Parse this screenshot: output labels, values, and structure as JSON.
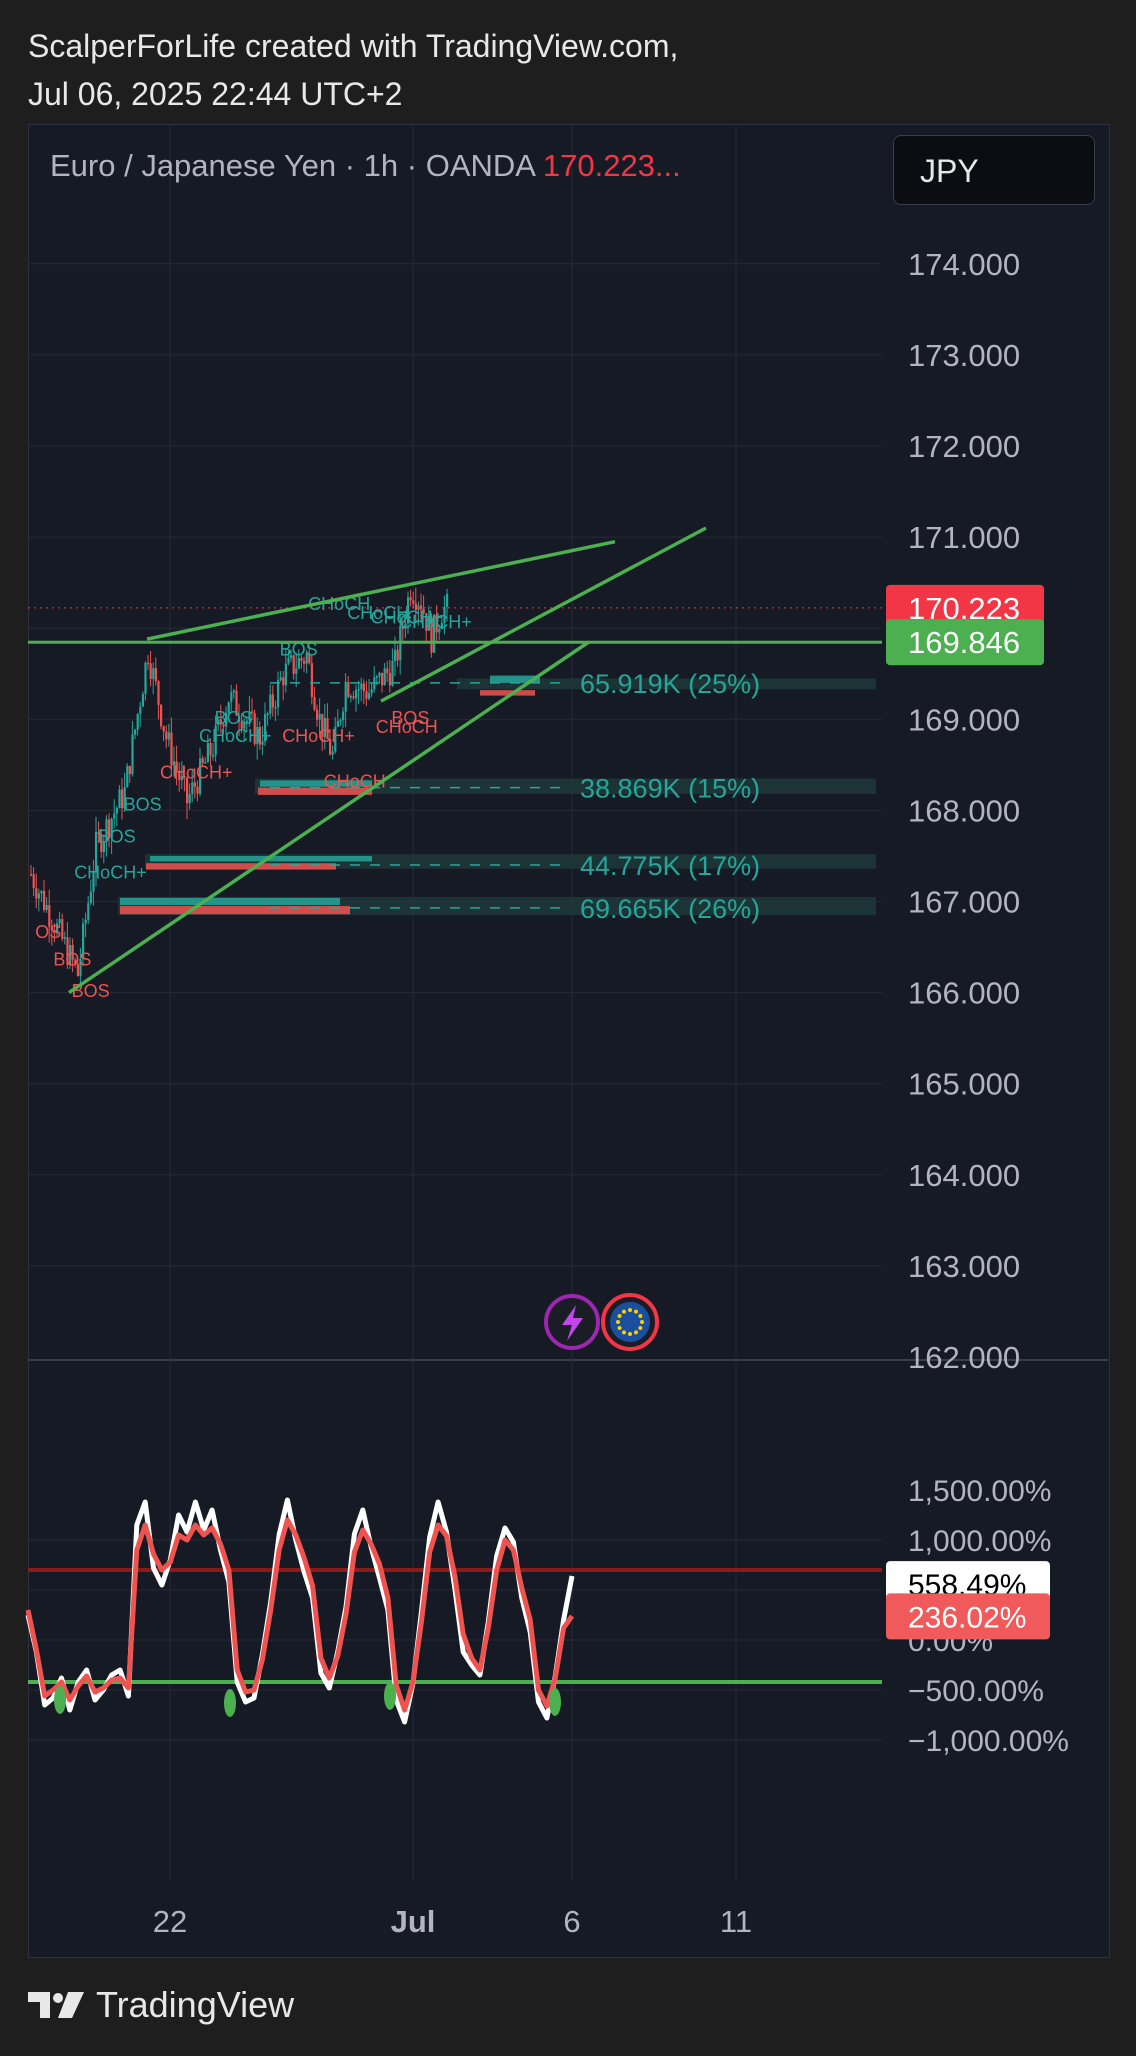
{
  "header": {
    "line1": "ScalperForLife created with TradingView.com,",
    "line2": "Jul 06, 2025 22:44 UTC+2"
  },
  "title": {
    "text": "Euro / Japanese Yen · 1h · OANDA",
    "price": "170.223..."
  },
  "currency_button": "JPY",
  "footer": {
    "brand": "TradingView"
  },
  "colors": {
    "background": "#161a25",
    "up": "#26a69a",
    "down": "#ef5350",
    "trendline": "#4caf50",
    "price_label": "#f23645",
    "level_label": "#4caf50",
    "osc_upper": "#8b1a1a"
  },
  "icons": [
    "lightning-icon",
    "eu-flag-icon"
  ],
  "chart_data": [
    {
      "type": "candlestick",
      "symbol": "EURJPY",
      "timeframe": "1h",
      "y_ticks": [
        "174.000",
        "173.000",
        "172.000",
        "171.000",
        "169.000",
        "168.000",
        "167.000",
        "166.000",
        "165.000",
        "164.000",
        "163.000",
        "162.000"
      ],
      "ylim": [
        162,
        174.9
      ],
      "x_ticks": [
        "22",
        "Jul",
        "6",
        "11"
      ],
      "price_tags": [
        {
          "label": "170.223",
          "value": 170.223,
          "color": "#f23645"
        },
        {
          "label": "169.846",
          "value": 169.846,
          "color": "#4caf50"
        }
      ],
      "volume_levels": [
        {
          "label": "65.919K (25%)",
          "price": 169.4
        },
        {
          "label": "38.869K (15%)",
          "price": 168.25
        },
        {
          "label": "44.775K (17%)",
          "price": 167.4
        },
        {
          "label": "69.665K (26%)",
          "price": 166.93
        }
      ],
      "structure_labels": [
        {
          "text": "CHoCH",
          "i": 107,
          "price": 170.2,
          "up": true
        },
        {
          "text": "CHoCH",
          "i": 122,
          "price": 170.1,
          "up": true
        },
        {
          "text": "CHoCH+",
          "i": 131,
          "price": 170.05,
          "up": true
        },
        {
          "text": "CHoCH+",
          "i": 142,
          "price": 170.0,
          "up": true
        },
        {
          "text": "BOS",
          "i": 96,
          "price": 169.7,
          "up": true
        },
        {
          "text": "BOS",
          "i": 71,
          "price": 168.95,
          "up": true
        },
        {
          "text": "CHoCH+",
          "i": 65,
          "price": 168.75,
          "up": true
        },
        {
          "text": "CHoCH+",
          "i": 97,
          "price": 168.75,
          "up": false
        },
        {
          "text": "CHoCH",
          "i": 133,
          "price": 168.85,
          "up": false
        },
        {
          "text": "BOS",
          "i": 139,
          "price": 168.95,
          "up": false
        },
        {
          "text": "CHoCH+",
          "i": 50,
          "price": 168.35,
          "up": false
        },
        {
          "text": "CHoCH",
          "i": 113,
          "price": 168.25,
          "up": false
        },
        {
          "text": "BOS",
          "i": 36,
          "price": 168.0,
          "up": true
        },
        {
          "text": "BOS",
          "i": 26,
          "price": 167.65,
          "up": true
        },
        {
          "text": "CHoCH+",
          "i": 17,
          "price": 167.25,
          "up": true
        },
        {
          "text": "OS",
          "i": 2,
          "price": 166.6,
          "up": false
        },
        {
          "text": "BOS",
          "i": 9,
          "price": 166.3,
          "up": false
        },
        {
          "text": "BOS",
          "i": 16,
          "price": 165.95,
          "up": false
        }
      ],
      "trendlines": [
        {
          "from": [
            45,
            169.88
          ],
          "to": [
            225,
            170.95
          ]
        },
        {
          "from": [
            15,
            166.0
          ],
          "to": [
            215,
            169.85
          ]
        },
        {
          "from": [
            135,
            169.2
          ],
          "to": [
            260,
            171.1
          ]
        }
      ],
      "horizontal_line": 169.846,
      "last_price": 170.223
    },
    {
      "type": "line",
      "name": "oscillator",
      "y_ticks": [
        "1,500.00%",
        "1,000.00%",
        "0.00%",
        "−500.00%",
        "−1,000.00%"
      ],
      "ylim": [
        -1150,
        1500
      ],
      "levels": [
        {
          "value": 700,
          "color": "#8b1a1a"
        },
        {
          "value": -420,
          "color": "#4caf50"
        }
      ],
      "value_tags": [
        {
          "label": "558.49%",
          "value": 558.49,
          "style": "white"
        },
        {
          "label": "236.02%",
          "value": 236.02,
          "style": "red"
        }
      ],
      "series": [
        {
          "values": [
            250,
            -120,
            -650,
            -580,
            -380,
            -700,
            -420,
            -300,
            -600,
            -500,
            -350,
            -300,
            -560,
            1150,
            1380,
            720,
            550,
            800,
            1250,
            1080,
            1380,
            1100,
            1300,
            900,
            580,
            -420,
            -620,
            -580,
            -150,
            380,
            1050,
            1400,
            1000,
            680,
            420,
            -330,
            -480,
            -120,
            330,
            1060,
            1300,
            930,
            620,
            300,
            -600,
            -820,
            -430,
            280,
            1030,
            1380,
            1080,
            520,
            -120,
            -250,
            -350,
            180,
            840,
            1120,
            980,
            420,
            80,
            -620,
            -780,
            -360,
            200,
            640
          ]
        },
        {
          "values": [
            300,
            -100,
            -560,
            -500,
            -420,
            -600,
            -460,
            -360,
            -520,
            -480,
            -400,
            -380,
            -480,
            900,
            1150,
            860,
            700,
            780,
            1050,
            1000,
            1150,
            1050,
            1120,
            960,
            700,
            -300,
            -520,
            -500,
            -200,
            300,
            900,
            1200,
            1050,
            820,
            540,
            -180,
            -380,
            -160,
            260,
            880,
            1100,
            960,
            760,
            420,
            -450,
            -700,
            -420,
            180,
            880,
            1150,
            1040,
            640,
            60,
            -180,
            -300,
            120,
            700,
            1000,
            900,
            520,
            200,
            -500,
            -660,
            -380,
            120,
            240
          ]
        }
      ]
    }
  ]
}
